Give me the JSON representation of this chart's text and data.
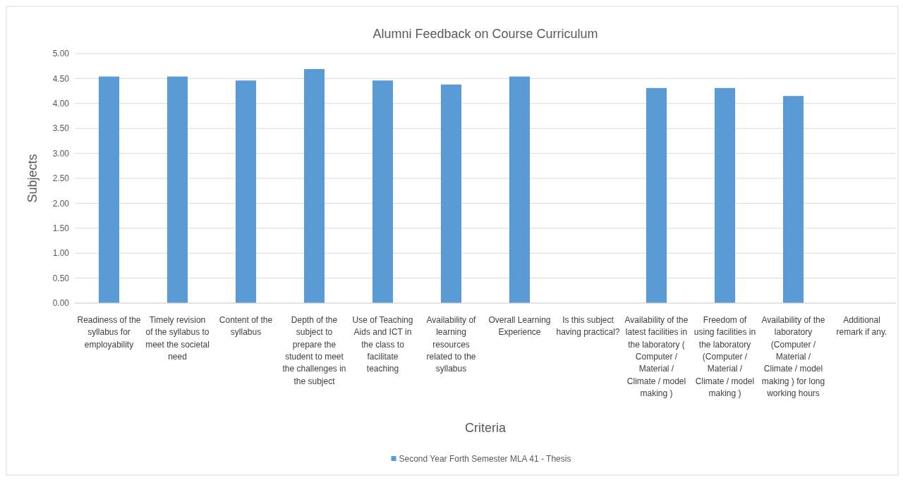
{
  "chart_data": {
    "type": "bar",
    "title": "Alumni Feedback on Course Curriculum",
    "xlabel": "Criteria",
    "ylabel": "Subjects",
    "categories": [
      "Readiness of the syllabus for employability",
      "Timely revision of the syllabus to meet the societal need",
      "Content of the syllabus",
      "Depth of the subject to prepare the student to meet the challenges in the subject",
      "Use of Teaching Aids and ICT in the class to facilitate teaching",
      "Availability of learning resources related to the syllabus",
      "Overall Learning Experience",
      "Is this subject having practical?",
      "Availability of the latest facilities in the laboratory ( Computer / Material / Climate / model making )",
      "Freedom of using facilities in the laboratory (Computer / Material / Climate / model making )",
      "Availability of the laboratory (Computer / Material / Climate / model making ) for long working hours",
      "Additional remark if any."
    ],
    "series": [
      {
        "name": "Second Year Forth Semester MLA 41 - Thesis",
        "color": "#5b9bd5",
        "values": [
          4.54,
          4.54,
          4.46,
          4.69,
          4.46,
          4.38,
          4.54,
          null,
          4.31,
          4.31,
          4.15,
          null
        ]
      }
    ],
    "ylim": [
      0,
      5
    ],
    "yticks": [
      {
        "value": 0,
        "label": "0.00"
      },
      {
        "value": 0.5,
        "label": "0.50"
      },
      {
        "value": 1,
        "label": "1.00"
      },
      {
        "value": 1.5,
        "label": "1.50"
      },
      {
        "value": 2,
        "label": "2.00"
      },
      {
        "value": 2.5,
        "label": "2.50"
      },
      {
        "value": 3,
        "label": "3.00"
      },
      {
        "value": 3.5,
        "label": "3.50"
      },
      {
        "value": 4,
        "label": "4.00"
      },
      {
        "value": 4.5,
        "label": "4.50"
      },
      {
        "value": 5,
        "label": "5.00"
      }
    ],
    "grid": "y",
    "legend": "bottom"
  }
}
